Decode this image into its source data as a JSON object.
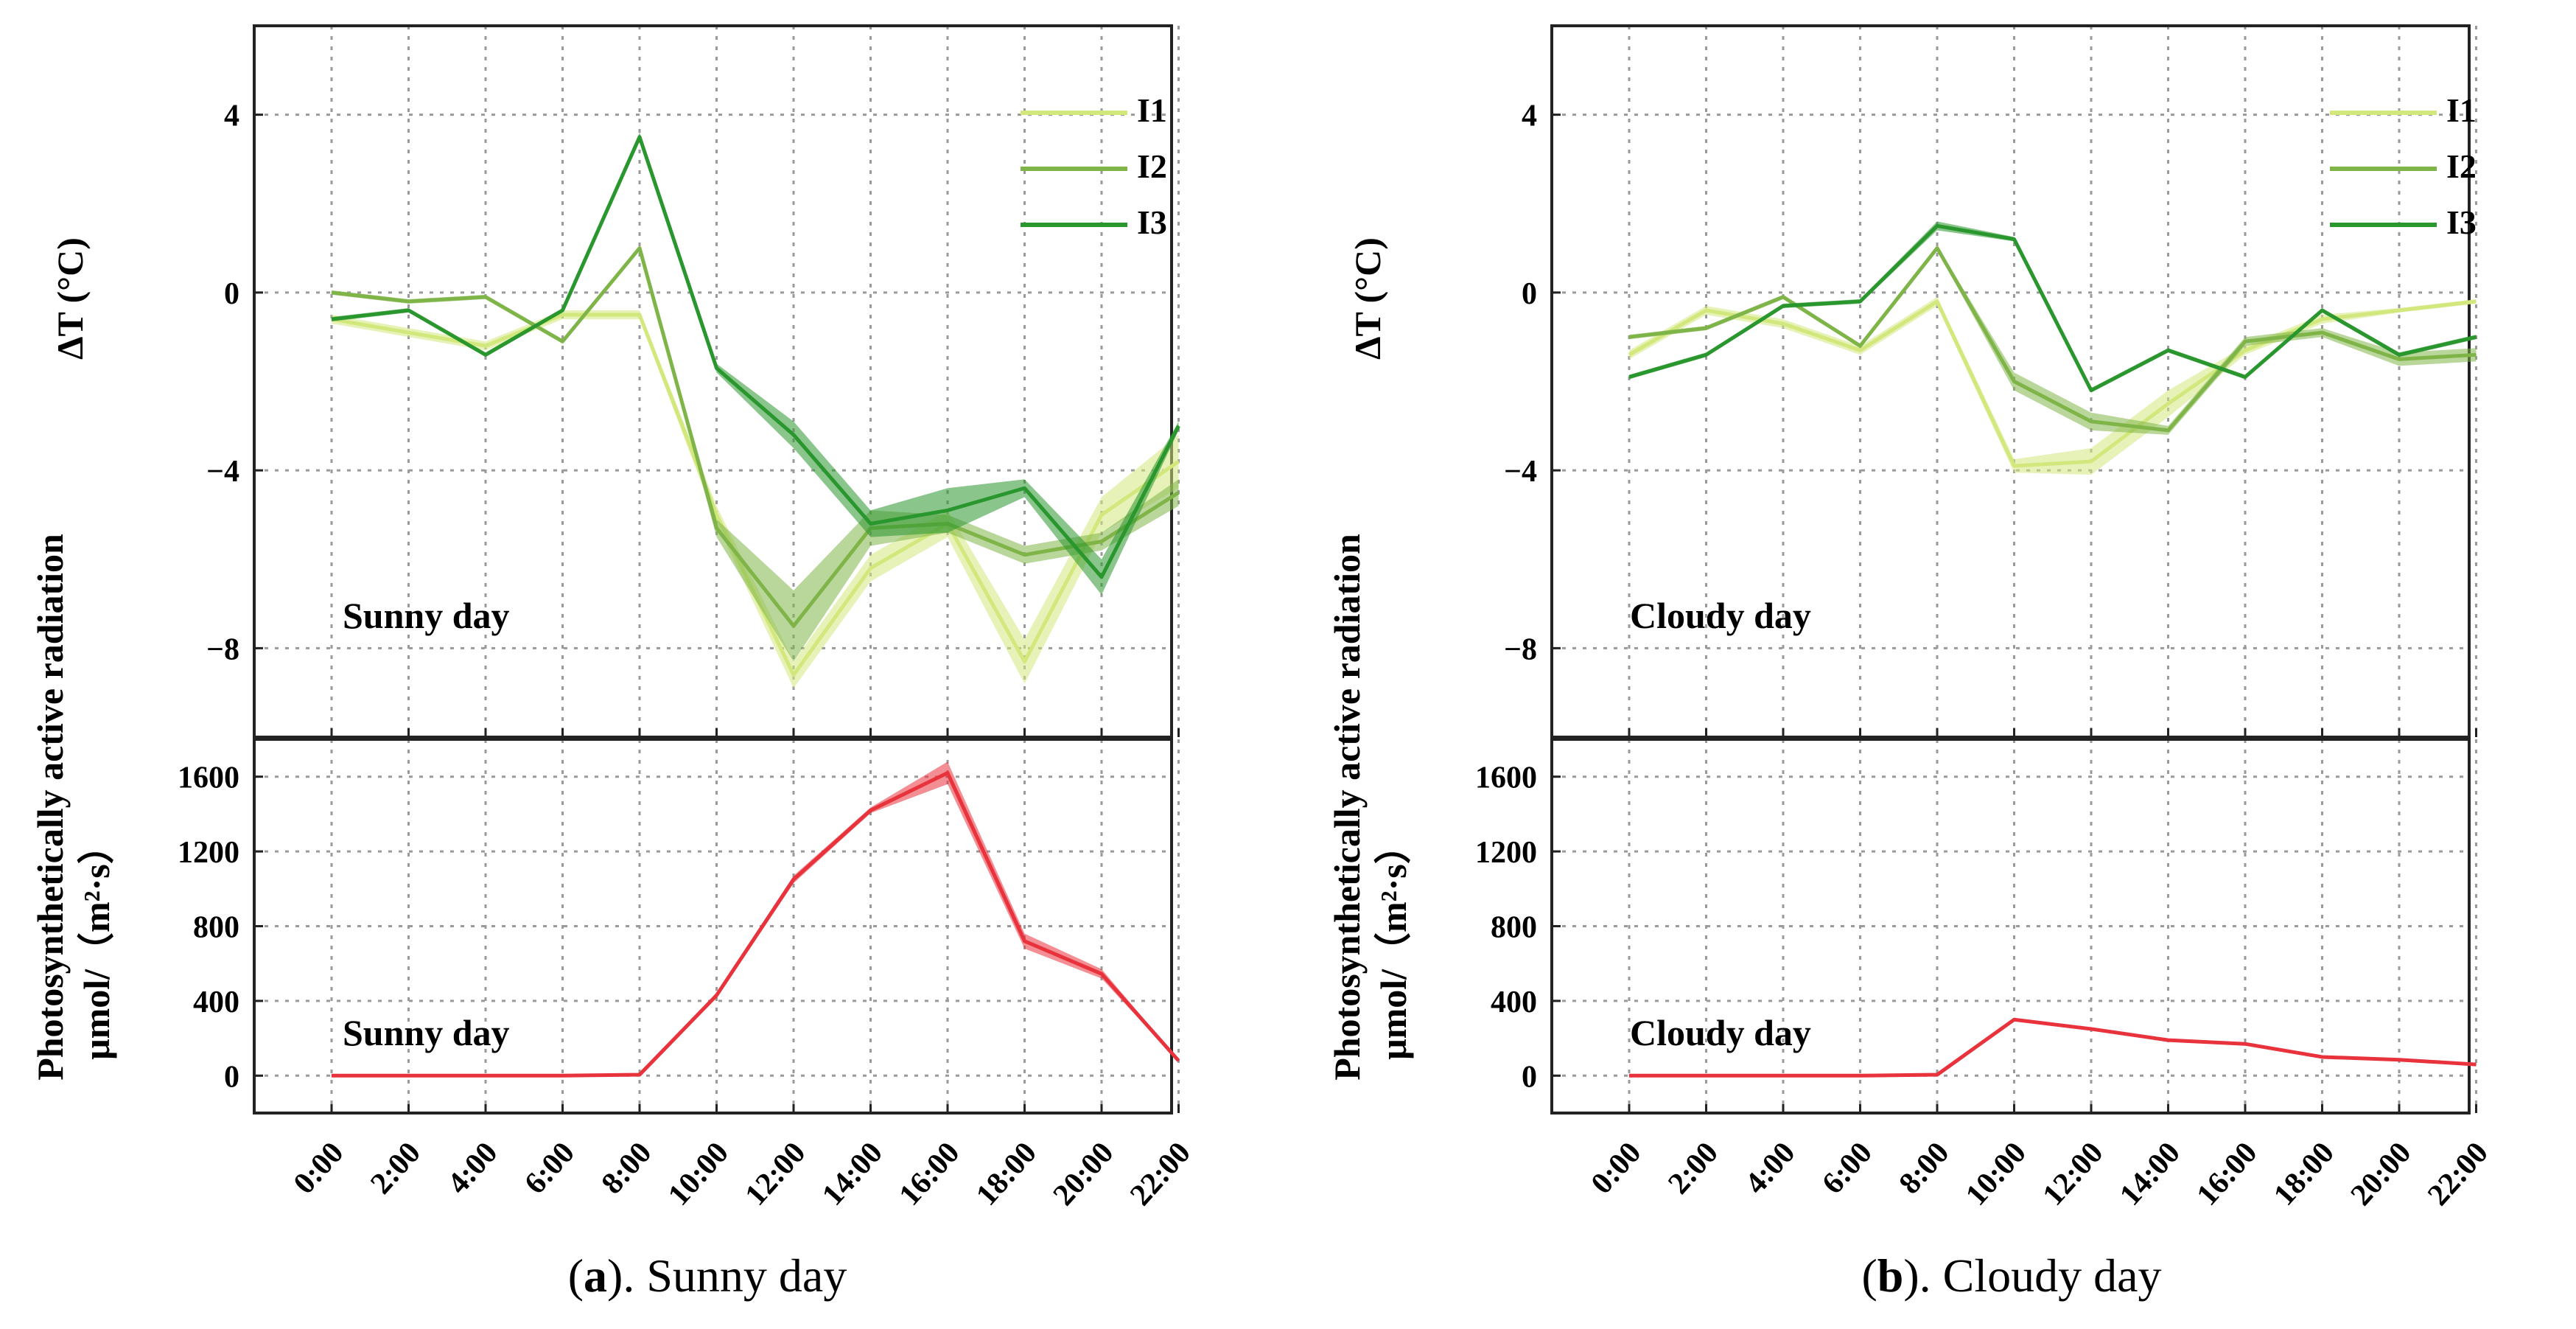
{
  "figure": {
    "captions": [
      {
        "label": "a",
        "pre": "(",
        "post": "). Sunny day"
      },
      {
        "label": "b",
        "pre": "(",
        "post": "). Cloudy day"
      }
    ],
    "delta_t_ylabel": "ΔT (°C)",
    "par_ylabel_line1": "Photosynthetically active radiation",
    "par_ylabel_line2": "μmol/（m²·s）",
    "colors": {
      "I1": "#d2e87c",
      "I2": "#7fb548",
      "I3": "#2a962e",
      "PAR": "#e8323c"
    }
  },
  "chart_data": [
    {
      "id": "a-temp",
      "type": "line",
      "panel_label": "Sunny day",
      "ylabel": "ΔT (°C)",
      "ylim": [
        -10,
        6
      ],
      "yticks": [
        4,
        0,
        -4,
        -8
      ],
      "ytick_labels": [
        "4",
        "0",
        "−4",
        "−8"
      ],
      "x": [
        "0:00",
        "2:00",
        "4:00",
        "6:00",
        "8:00",
        "10:00",
        "12:00",
        "14:00",
        "16:00",
        "18:00",
        "20:00",
        "22:00"
      ],
      "grid": true,
      "legend": "top-right",
      "series": [
        {
          "name": "I1",
          "values": [
            -0.6,
            -0.9,
            -1.2,
            -0.5,
            -0.5,
            -5.0,
            -8.6,
            -6.2,
            -5.2,
            -8.3,
            -5.0,
            -3.8
          ],
          "band": [
            0.1,
            0.1,
            0.1,
            0.1,
            0.1,
            0.2,
            0.3,
            0.3,
            0.3,
            0.5,
            0.4,
            0.6
          ]
        },
        {
          "name": "I2",
          "values": [
            0.0,
            -0.2,
            -0.1,
            -1.1,
            1.0,
            -5.3,
            -7.5,
            -5.3,
            -5.2,
            -5.9,
            -5.6,
            -4.5
          ],
          "band": [
            0.05,
            0.05,
            0.05,
            0.05,
            0.05,
            0.2,
            0.8,
            0.4,
            0.2,
            0.2,
            0.2,
            0.3
          ]
        },
        {
          "name": "I3",
          "values": [
            -0.6,
            -0.4,
            -1.4,
            -0.4,
            3.5,
            -1.7,
            -3.2,
            -5.2,
            -4.9,
            -4.4,
            -6.4,
            -3.0
          ],
          "band": [
            0.05,
            0.05,
            0.05,
            0.05,
            0.1,
            0.1,
            0.3,
            0.3,
            0.5,
            0.2,
            0.4,
            0.1
          ]
        }
      ]
    },
    {
      "id": "a-par",
      "type": "area",
      "panel_label": "Sunny day",
      "ylabel": "μmol/（m²·s）",
      "ylim": [
        -200,
        1800
      ],
      "yticks": [
        1600,
        1200,
        800,
        400,
        0
      ],
      "ytick_labels": [
        "1600",
        "1200",
        "800",
        "400",
        "0"
      ],
      "x": [
        "0:00",
        "2:00",
        "4:00",
        "6:00",
        "8:00",
        "10:00",
        "12:00",
        "14:00",
        "16:00",
        "18:00",
        "20:00",
        "22:00"
      ],
      "grid": true,
      "series": [
        {
          "name": "PAR",
          "values": [
            0,
            0,
            0,
            0,
            5,
            430,
            1050,
            1420,
            1620,
            720,
            545,
            80
          ],
          "band": [
            2,
            2,
            2,
            2,
            5,
            15,
            20,
            15,
            60,
            40,
            25,
            5
          ]
        }
      ]
    },
    {
      "id": "b-temp",
      "type": "line",
      "panel_label": "Cloudy day",
      "ylabel": "ΔT (°C)",
      "ylim": [
        -10,
        6
      ],
      "yticks": [
        4,
        0,
        -4,
        -8
      ],
      "ytick_labels": [
        "4",
        "0",
        "−4",
        "−8"
      ],
      "x": [
        "0:00",
        "2:00",
        "4:00",
        "6:00",
        "8:00",
        "10:00",
        "12:00",
        "14:00",
        "16:00",
        "18:00",
        "20:00",
        "22:00"
      ],
      "grid": true,
      "legend": "top-right",
      "series": [
        {
          "name": "I1",
          "values": [
            -1.4,
            -0.4,
            -0.7,
            -1.3,
            -0.2,
            -3.9,
            -3.8,
            -2.5,
            -1.3,
            -0.6,
            -0.4,
            -0.2
          ],
          "band": [
            0.1,
            0.1,
            0.1,
            0.1,
            0.1,
            0.15,
            0.3,
            0.3,
            0.1,
            0.1,
            0.05,
            0.05
          ]
        },
        {
          "name": "I2",
          "values": [
            -1.0,
            -0.8,
            -0.1,
            -1.2,
            1.0,
            -2.0,
            -2.9,
            -3.1,
            -1.1,
            -0.9,
            -1.5,
            -1.4
          ],
          "band": [
            0.05,
            0.05,
            0.05,
            0.05,
            0.05,
            0.2,
            0.2,
            0.1,
            0.1,
            0.1,
            0.15,
            0.15
          ]
        },
        {
          "name": "I3",
          "values": [
            -1.9,
            -1.4,
            -0.3,
            -0.2,
            1.5,
            1.2,
            -2.2,
            -1.3,
            -1.9,
            -0.4,
            -1.4,
            -1.0
          ],
          "band": [
            0.05,
            0.05,
            0.05,
            0.05,
            0.1,
            0.05,
            0.05,
            0.05,
            0.05,
            0.05,
            0.05,
            0.05
          ]
        }
      ]
    },
    {
      "id": "b-par",
      "type": "area",
      "panel_label": "Cloudy day",
      "ylabel": "μmol/（m²·s）",
      "ylim": [
        -200,
        1800
      ],
      "yticks": [
        1600,
        1200,
        800,
        400,
        0
      ],
      "ytick_labels": [
        "1600",
        "1200",
        "800",
        "400",
        "0"
      ],
      "x": [
        "0:00",
        "2:00",
        "4:00",
        "6:00",
        "8:00",
        "10:00",
        "12:00",
        "14:00",
        "16:00",
        "18:00",
        "20:00",
        "22:00"
      ],
      "grid": true,
      "series": [
        {
          "name": "PAR",
          "values": [
            0,
            0,
            0,
            0,
            5,
            300,
            250,
            190,
            170,
            100,
            85,
            60
          ],
          "band": [
            1,
            1,
            1,
            1,
            2,
            8,
            6,
            5,
            5,
            4,
            4,
            3
          ]
        }
      ]
    }
  ]
}
